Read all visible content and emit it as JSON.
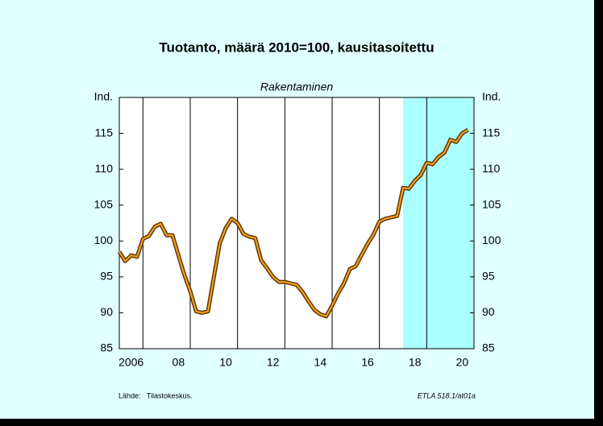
{
  "chart_data": {
    "type": "line",
    "title": "Tuotanto, määrä 2010=100, kausitasoitettu",
    "subtitle": "Rakentaminen",
    "source": "Lähde:   Tilastokeskus.",
    "code": "ETLA 518.1/at01a",
    "x": [
      2006.0,
      2006.25,
      2006.5,
      2006.75,
      2007.0,
      2007.25,
      2007.5,
      2007.75,
      2008.0,
      2008.25,
      2008.5,
      2008.75,
      2009.0,
      2009.25,
      2009.5,
      2009.75,
      2010.0,
      2010.25,
      2010.5,
      2010.75,
      2011.0,
      2011.25,
      2011.5,
      2011.75,
      2012.0,
      2012.25,
      2012.5,
      2012.75,
      2013.0,
      2013.25,
      2013.5,
      2013.75,
      2014.0,
      2014.25,
      2014.5,
      2014.75,
      2015.0,
      2015.25,
      2015.5,
      2015.75,
      2016.0,
      2016.25,
      2016.5,
      2016.75,
      2017.0,
      2017.25,
      2017.5,
      2017.75,
      2018.0,
      2018.25,
      2018.5,
      2018.75,
      2019.0,
      2019.25,
      2019.5,
      2019.75,
      2020.0,
      2020.25,
      2020.5,
      2020.75
    ],
    "series": [
      {
        "color": "#f0a020",
        "values": [
          98.5,
          97.2,
          98.0,
          97.8,
          100.3,
          100.7,
          102.0,
          102.4,
          100.8,
          100.8,
          98.0,
          95.3,
          93.0,
          90.2,
          90.0,
          90.2,
          95.0,
          99.7,
          101.8,
          103.1,
          102.5,
          101.0,
          100.6,
          100.4,
          97.3,
          96.2,
          95.0,
          94.3,
          94.3,
          94.1,
          93.9,
          92.9,
          91.6,
          90.4,
          89.8,
          89.5,
          91.0,
          92.7,
          94.1,
          96.1,
          96.5,
          98.1,
          99.6,
          100.9,
          102.7,
          103.1,
          103.3,
          103.5,
          107.4,
          107.3,
          108.4,
          109.2,
          110.9,
          110.7,
          111.7,
          112.3,
          114.1,
          113.8,
          115.0,
          115.5
        ]
      }
    ],
    "xlim": [
      2006,
      2021
    ],
    "xticks": [
      {
        "value": 2006.5,
        "label": "2006"
      },
      {
        "value": 2008.5,
        "label": "08"
      },
      {
        "value": 2010.5,
        "label": "10"
      },
      {
        "value": 2012.5,
        "label": "12"
      },
      {
        "value": 2014.5,
        "label": "14"
      },
      {
        "value": 2016.5,
        "label": "16"
      },
      {
        "value": 2018.5,
        "label": "18"
      },
      {
        "value": 2020.5,
        "label": "20"
      }
    ],
    "xgrid": [
      2007,
      2009,
      2011,
      2013,
      2015,
      2017,
      2019
    ],
    "shade_from": 2018,
    "shade_color": "#aaffff",
    "ylim": [
      85,
      120
    ],
    "yticks": [
      85,
      90,
      95,
      100,
      105,
      110,
      115,
      {
        "value": 120,
        "label": "Ind."
      }
    ]
  }
}
